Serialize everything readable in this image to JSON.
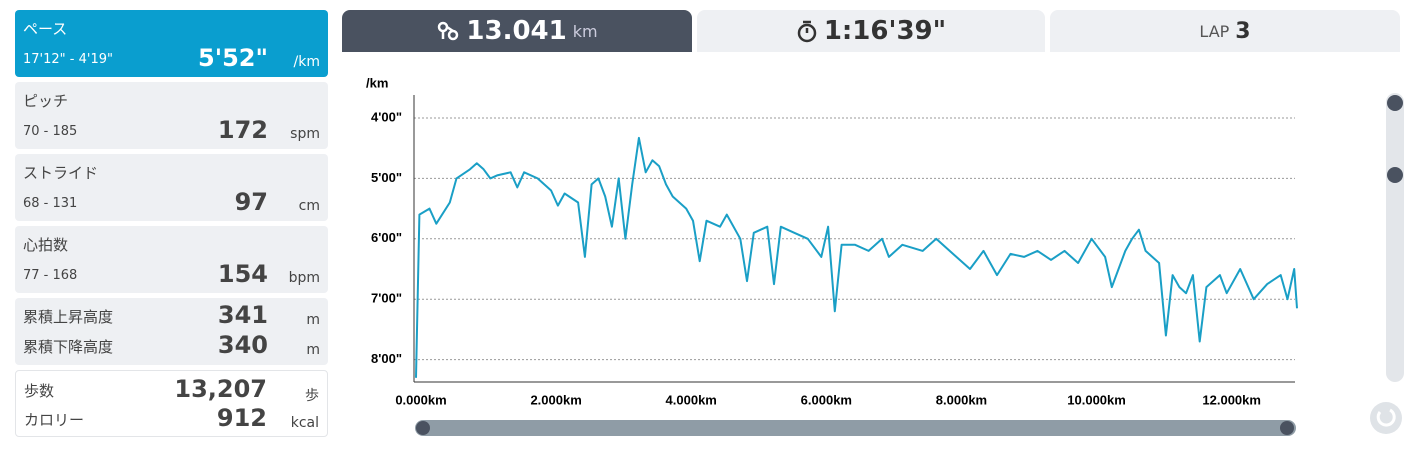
{
  "sidebar": [
    {
      "label": "ペース",
      "range": "17'12\" - 4'19\"",
      "value": "5'52\"",
      "unit": "/km"
    },
    {
      "label": "ピッチ",
      "range": "70 - 185",
      "value": "172",
      "unit": "spm"
    },
    {
      "label": "ストライド",
      "range": "68 - 131",
      "value": "97",
      "unit": "cm"
    },
    {
      "label": "心拍数",
      "range": "77 - 168",
      "value": "154",
      "unit": "bpm"
    },
    {
      "rows": [
        {
          "label": "累積上昇高度",
          "value": "341",
          "unit": "m"
        },
        {
          "label": "累積下降高度",
          "value": "340",
          "unit": "m"
        }
      ]
    },
    {
      "rows": [
        {
          "label": "歩数",
          "value": "13,207",
          "unit": "歩"
        },
        {
          "label": "カロリー",
          "value": "912",
          "unit": "kcal"
        }
      ]
    }
  ],
  "tabs": {
    "distance": {
      "value": "13.041",
      "unit": "km"
    },
    "time": {
      "value": "1:16'39\""
    },
    "lap": {
      "label": "LAP",
      "value": "3"
    }
  },
  "chart_data": {
    "type": "line",
    "y_label": "/km",
    "x": [
      0,
      0.05,
      0.2,
      0.3,
      0.5,
      0.6,
      0.8,
      0.9,
      1.0,
      1.1,
      1.2,
      1.4,
      1.5,
      1.6,
      1.8,
      2.0,
      2.1,
      2.2,
      2.4,
      2.5,
      2.6,
      2.7,
      2.8,
      2.9,
      3.0,
      3.1,
      3.2,
      3.3,
      3.4,
      3.5,
      3.6,
      3.7,
      3.8,
      4.0,
      4.1,
      4.2,
      4.3,
      4.5,
      4.6,
      4.8,
      4.9,
      5.0,
      5.2,
      5.3,
      5.4,
      5.6,
      5.8,
      6.0,
      6.1,
      6.2,
      6.3,
      6.5,
      6.7,
      6.9,
      7.0,
      7.2,
      7.5,
      7.7,
      8.0,
      8.2,
      8.4,
      8.6,
      8.8,
      9.0,
      9.2,
      9.4,
      9.6,
      9.8,
      10.0,
      10.2,
      10.3,
      10.5,
      10.6,
      10.7,
      10.8,
      11.0,
      11.1,
      11.2,
      11.3,
      11.4,
      11.5,
      11.6,
      11.7,
      11.9,
      12.0,
      12.2,
      12.4,
      12.6,
      12.8,
      12.9,
      13.0,
      13.041
    ],
    "series": [
      {
        "color": "#1a9fc6",
        "values": [
          8.3,
          5.6,
          5.5,
          5.75,
          5.4,
          5.0,
          4.85,
          4.75,
          4.85,
          5.0,
          4.95,
          4.9,
          5.15,
          4.9,
          5.0,
          5.2,
          5.45,
          5.25,
          5.4,
          6.3,
          5.1,
          5.0,
          5.3,
          5.8,
          5.0,
          6.0,
          5.1,
          4.33,
          4.9,
          4.7,
          4.8,
          5.1,
          5.3,
          5.5,
          5.7,
          6.37,
          5.7,
          5.8,
          5.6,
          6.0,
          6.7,
          5.9,
          5.8,
          6.75,
          5.8,
          5.9,
          6.0,
          6.3,
          5.8,
          7.2,
          6.1,
          6.1,
          6.2,
          6.0,
          6.3,
          6.1,
          6.2,
          6.0,
          6.3,
          6.5,
          6.2,
          6.6,
          6.25,
          6.3,
          6.2,
          6.35,
          6.2,
          6.4,
          6.0,
          6.3,
          6.8,
          6.2,
          6.0,
          5.85,
          6.2,
          6.4,
          7.6,
          6.6,
          6.8,
          6.9,
          6.6,
          7.7,
          6.8,
          6.6,
          6.9,
          6.5,
          7.0,
          6.75,
          6.6,
          7.0,
          6.5,
          7.15
        ]
      }
    ],
    "xlim": [
      0,
      13.041
    ],
    "ylim": [
      8.37,
      3.62
    ],
    "xticks": [
      {
        "value": 0,
        "label": "0.000km"
      },
      {
        "value": 2,
        "label": "2.000km"
      },
      {
        "value": 4,
        "label": "4.000km"
      },
      {
        "value": 6,
        "label": "6.000km"
      },
      {
        "value": 8,
        "label": "8.000km"
      },
      {
        "value": 10,
        "label": "10.000km"
      },
      {
        "value": 12,
        "label": "12.000km"
      }
    ],
    "yticks": [
      {
        "value": 4,
        "label": "4'00\""
      },
      {
        "value": 5,
        "label": "5'00\""
      },
      {
        "value": 6,
        "label": "6'00\""
      },
      {
        "value": 7,
        "label": "7'00\""
      },
      {
        "value": 8,
        "label": "8'00\""
      }
    ],
    "grid": true
  }
}
